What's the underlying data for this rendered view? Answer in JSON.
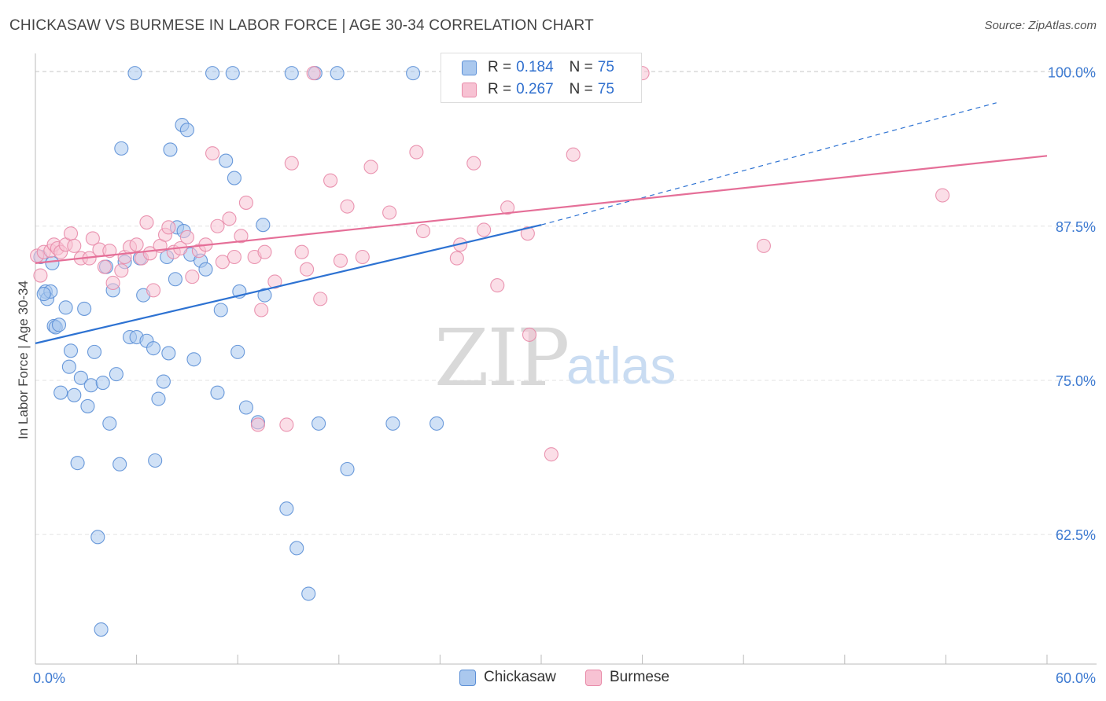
{
  "header": {
    "title": "CHICKASAW VS BURMESE IN LABOR FORCE | AGE 30-34 CORRELATION CHART",
    "source": "Source: ZipAtlas.com"
  },
  "legend": {
    "rows": [
      {
        "r_label": "R = ",
        "r_value": "0.184",
        "n_label": "N = ",
        "n_value": "75"
      },
      {
        "r_label": "R = ",
        "r_value": "0.267",
        "n_label": "N = ",
        "n_value": "75"
      }
    ]
  },
  "bottom_legend": [
    "Chickasaw",
    "Burmese"
  ],
  "watermark": {
    "zip": "ZIP",
    "atlas": "atlas"
  },
  "colors": {
    "chickasaw_fill": "#aac8ee",
    "chickasaw_stroke": "#5b8fd6",
    "chickasaw_line": "#2d72d2",
    "burmese_fill": "#f7c2d3",
    "burmese_stroke": "#e88aa8",
    "burmese_line": "#e56f98",
    "tick_label": "#3d7ad1",
    "grid": "#e3e3e3"
  },
  "chart_data": {
    "type": "scatter",
    "title": "CHICKASAW VS BURMESE IN LABOR FORCE | AGE 30-34 CORRELATION CHART",
    "xlabel": "",
    "ylabel": "In Labor Force | Age 30-34",
    "xlim": [
      0,
      60
    ],
    "ylim": [
      52,
      101.5
    ],
    "x_tick_labels": [
      "0.0%",
      "60.0%"
    ],
    "y_ticks": [
      62.5,
      75.0,
      87.5,
      100.0
    ],
    "y_tick_labels": [
      "62.5%",
      "75.0%",
      "87.5%",
      "100.0%"
    ],
    "grid": true,
    "legend_position": "top-center",
    "series": [
      {
        "name": "Chickasaw",
        "r": 0.184,
        "n": 75,
        "trend": {
          "x0": 0,
          "y0": 78.0,
          "x1": 30,
          "y1": 87.6,
          "dash_to_x": 57,
          "dash_to_y": 97.5
        },
        "points": [
          [
            0.3,
            85.0
          ],
          [
            0.6,
            82.2
          ],
          [
            0.7,
            81.6
          ],
          [
            0.9,
            82.2
          ],
          [
            1.1,
            79.4
          ],
          [
            1.2,
            79.3
          ],
          [
            1.4,
            79.5
          ],
          [
            1.5,
            74.0
          ],
          [
            1.8,
            80.9
          ],
          [
            2.0,
            76.1
          ],
          [
            2.1,
            77.4
          ],
          [
            2.3,
            73.8
          ],
          [
            2.5,
            68.3
          ],
          [
            2.7,
            75.2
          ],
          [
            2.9,
            80.8
          ],
          [
            3.1,
            72.9
          ],
          [
            3.3,
            74.6
          ],
          [
            3.5,
            77.3
          ],
          [
            3.7,
            62.3
          ],
          [
            3.9,
            54.8
          ],
          [
            4.0,
            74.8
          ],
          [
            4.2,
            84.2
          ],
          [
            4.4,
            71.5
          ],
          [
            4.6,
            82.3
          ],
          [
            4.8,
            75.5
          ],
          [
            5.0,
            68.2
          ],
          [
            5.1,
            93.8
          ],
          [
            5.3,
            84.6
          ],
          [
            5.6,
            78.5
          ],
          [
            5.9,
            99.9
          ],
          [
            6.0,
            78.5
          ],
          [
            6.2,
            84.9
          ],
          [
            6.4,
            81.9
          ],
          [
            6.6,
            78.2
          ],
          [
            7.0,
            77.6
          ],
          [
            7.1,
            68.5
          ],
          [
            7.3,
            73.5
          ],
          [
            7.6,
            74.9
          ],
          [
            7.9,
            77.2
          ],
          [
            8.0,
            93.7
          ],
          [
            8.3,
            83.2
          ],
          [
            8.4,
            87.4
          ],
          [
            8.7,
            95.7
          ],
          [
            8.8,
            87.1
          ],
          [
            9.0,
            95.3
          ],
          [
            9.2,
            85.2
          ],
          [
            9.4,
            76.7
          ],
          [
            9.8,
            84.7
          ],
          [
            10.1,
            84.0
          ],
          [
            10.5,
            99.9
          ],
          [
            10.8,
            74.0
          ],
          [
            11.0,
            80.7
          ],
          [
            11.3,
            92.8
          ],
          [
            11.7,
            99.9
          ],
          [
            11.8,
            91.4
          ],
          [
            12.0,
            77.3
          ],
          [
            12.1,
            82.2
          ],
          [
            12.5,
            72.8
          ],
          [
            13.2,
            71.6
          ],
          [
            13.5,
            87.6
          ],
          [
            13.6,
            81.9
          ],
          [
            14.9,
            64.6
          ],
          [
            15.2,
            99.9
          ],
          [
            15.5,
            61.4
          ],
          [
            16.2,
            57.7
          ],
          [
            16.6,
            99.9
          ],
          [
            16.8,
            71.5
          ],
          [
            17.9,
            99.9
          ],
          [
            18.5,
            67.8
          ],
          [
            21.2,
            71.5
          ],
          [
            22.4,
            99.9
          ],
          [
            23.8,
            71.5
          ],
          [
            0.5,
            82.0
          ],
          [
            1.0,
            84.5
          ],
          [
            7.8,
            85.0
          ]
        ]
      },
      {
        "name": "Burmese",
        "r": 0.267,
        "n": 75,
        "trend": {
          "x0": 0,
          "y0": 84.5,
          "x1": 60,
          "y1": 93.2
        },
        "points": [
          [
            0.1,
            85.1
          ],
          [
            0.3,
            83.5
          ],
          [
            0.5,
            85.4
          ],
          [
            0.9,
            85.5
          ],
          [
            1.1,
            86.0
          ],
          [
            1.3,
            85.7
          ],
          [
            1.5,
            85.4
          ],
          [
            1.8,
            86.0
          ],
          [
            2.1,
            86.9
          ],
          [
            2.3,
            85.9
          ],
          [
            2.7,
            84.9
          ],
          [
            3.2,
            84.9
          ],
          [
            3.4,
            86.5
          ],
          [
            3.8,
            85.6
          ],
          [
            4.1,
            84.2
          ],
          [
            4.4,
            85.5
          ],
          [
            4.6,
            82.9
          ],
          [
            5.1,
            83.9
          ],
          [
            5.3,
            85.0
          ],
          [
            5.6,
            85.8
          ],
          [
            6.0,
            86.0
          ],
          [
            6.3,
            84.9
          ],
          [
            6.6,
            87.8
          ],
          [
            6.8,
            85.3
          ],
          [
            7.0,
            82.3
          ],
          [
            7.4,
            85.9
          ],
          [
            7.7,
            86.8
          ],
          [
            7.9,
            87.4
          ],
          [
            8.2,
            85.4
          ],
          [
            8.6,
            85.7
          ],
          [
            9.0,
            86.6
          ],
          [
            9.3,
            83.4
          ],
          [
            9.7,
            85.5
          ],
          [
            10.1,
            86.0
          ],
          [
            10.5,
            93.4
          ],
          [
            10.8,
            87.5
          ],
          [
            11.1,
            84.6
          ],
          [
            11.5,
            88.1
          ],
          [
            11.8,
            85.0
          ],
          [
            12.2,
            86.7
          ],
          [
            12.5,
            89.4
          ],
          [
            13.0,
            85.0
          ],
          [
            13.2,
            71.4
          ],
          [
            13.4,
            80.7
          ],
          [
            13.6,
            85.4
          ],
          [
            14.2,
            83.0
          ],
          [
            14.9,
            71.4
          ],
          [
            15.2,
            92.6
          ],
          [
            15.8,
            85.4
          ],
          [
            16.1,
            84.0
          ],
          [
            16.5,
            99.9
          ],
          [
            16.9,
            81.6
          ],
          [
            17.5,
            91.2
          ],
          [
            18.1,
            84.7
          ],
          [
            18.5,
            89.1
          ],
          [
            19.4,
            85.0
          ],
          [
            19.9,
            92.3
          ],
          [
            21.0,
            88.6
          ],
          [
            22.6,
            93.5
          ],
          [
            23.0,
            87.1
          ],
          [
            25.0,
            84.9
          ],
          [
            25.2,
            86.0
          ],
          [
            26.0,
            92.6
          ],
          [
            26.4,
            99.9
          ],
          [
            26.6,
            87.2
          ],
          [
            27.3,
            99.9
          ],
          [
            27.4,
            82.7
          ],
          [
            28.0,
            89.0
          ],
          [
            29.2,
            86.9
          ],
          [
            29.3,
            78.7
          ],
          [
            30.6,
            69.0
          ],
          [
            31.9,
            93.3
          ],
          [
            36.0,
            99.9
          ],
          [
            43.2,
            85.9
          ],
          [
            53.8,
            90.0
          ]
        ]
      }
    ]
  }
}
